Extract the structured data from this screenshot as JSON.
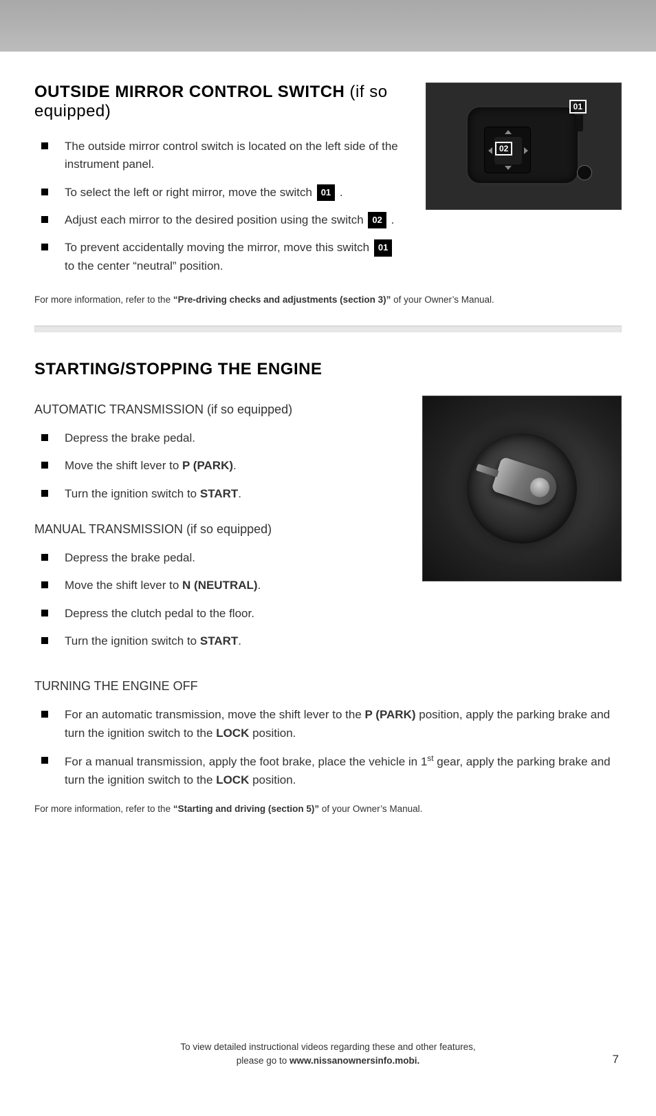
{
  "page_number": "7",
  "top_bar_color": "#b4b4b4",
  "section1": {
    "heading": "OUTSIDE MIRROR CONTROL SWITCH",
    "heading_qualifier": " (if so equipped)",
    "image_labels": {
      "l01": "01",
      "l02": "02"
    },
    "bullets": [
      {
        "pre": "The outside mirror control switch is located on the left side of the instrument panel."
      },
      {
        "pre": "To select the left or right mirror, move the switch ",
        "badge": "01",
        "post": " ."
      },
      {
        "pre": "Adjust each mirror to the desired position using the switch ",
        "badge": "02",
        "post": " ."
      },
      {
        "pre": "To prevent accidentally moving the mirror, move this switch ",
        "badge": "01",
        "post": " to the center “neutral” position."
      }
    ],
    "footnote_pre": "For more information, refer to the ",
    "footnote_bold": "“Pre-driving checks and adjustments (section 3)”",
    "footnote_post": " of your Owner’s Manual."
  },
  "section2": {
    "heading": "STARTING/STOPPING THE ENGINE",
    "sub1": "AUTOMATIC TRANSMISSION (if so equipped)",
    "sub1_bullets": [
      {
        "text": "Depress the brake pedal."
      },
      {
        "pre": "Move the shift lever to ",
        "bold": "P (PARK)",
        "post": "."
      },
      {
        "pre": "Turn the ignition switch to ",
        "bold": "START",
        "post": "."
      }
    ],
    "sub2": "MANUAL TRANSMISSION (if so equipped)",
    "sub2_bullets": [
      {
        "text": "Depress the brake pedal."
      },
      {
        "pre": "Move the shift lever to ",
        "bold": "N (NEUTRAL)",
        "post": "."
      },
      {
        "text": "Depress the clutch pedal to the floor."
      },
      {
        "pre": "Turn the ignition switch to ",
        "bold": "START",
        "post": "."
      }
    ],
    "sub3": "TURNING THE ENGINE OFF",
    "sub3_bullets": [
      {
        "segments": [
          {
            "t": "For an automatic transmission, move the shift lever to the "
          },
          {
            "b": "P (PARK)"
          },
          {
            "t": " position, apply the parking brake and turn the ignition switch to the "
          },
          {
            "b": "LOCK"
          },
          {
            "t": " position."
          }
        ]
      },
      {
        "segments": [
          {
            "t": "For a manual transmission, apply the foot brake, place the vehicle in 1"
          },
          {
            "sup": "st"
          },
          {
            "t": " gear, apply the parking brake and turn the ignition switch to the "
          },
          {
            "b": "LOCK"
          },
          {
            "t": " position."
          }
        ]
      }
    ],
    "footnote_pre": "For more information, refer to the ",
    "footnote_bold": "“Starting and driving (section 5)”",
    "footnote_post": " of your Owner’s Manual."
  },
  "bottom_note_line1": "To view detailed instructional videos regarding these and other features,",
  "bottom_note_line2_pre": "please go to ",
  "bottom_note_line2_bold": "www.nissanownersinfo.mobi."
}
